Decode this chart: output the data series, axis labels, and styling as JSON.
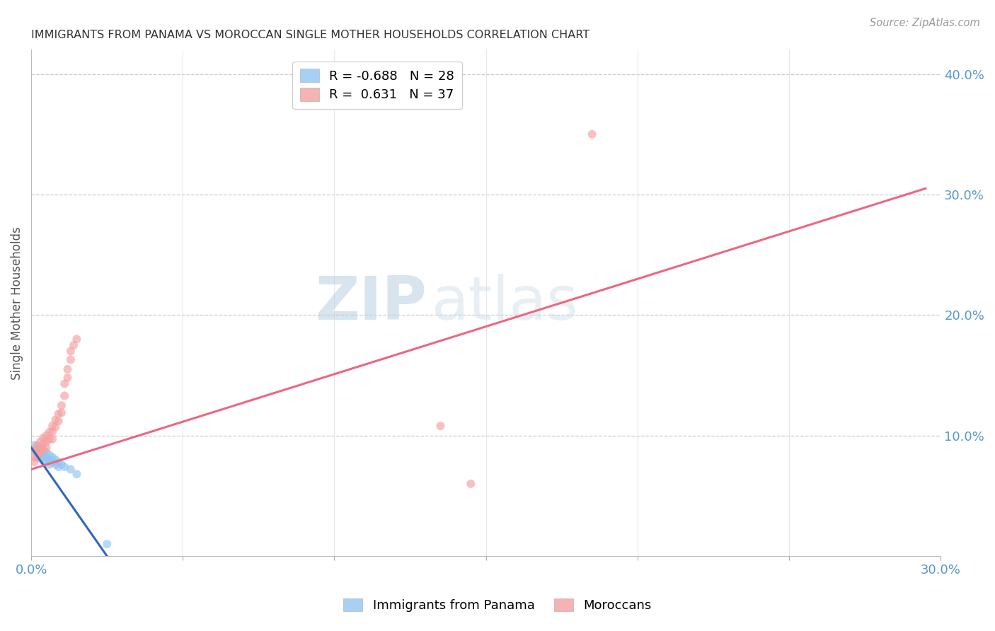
{
  "title": "IMMIGRANTS FROM PANAMA VS MOROCCAN SINGLE MOTHER HOUSEHOLDS CORRELATION CHART",
  "source": "Source: ZipAtlas.com",
  "ylabel": "Single Mother Households",
  "xlim": [
    0.0,
    0.3
  ],
  "ylim": [
    0.0,
    0.42
  ],
  "xticks": [
    0.0,
    0.05,
    0.1,
    0.15,
    0.2,
    0.25,
    0.3
  ],
  "xtick_labels": [
    "0.0%",
    "",
    "",
    "",
    "",
    "",
    "30.0%"
  ],
  "yticks_right": [
    0.1,
    0.2,
    0.3,
    0.4
  ],
  "ytick_labels_right": [
    "10.0%",
    "20.0%",
    "30.0%",
    "40.0%"
  ],
  "grid_color": "#cccccc",
  "background_color": "#ffffff",
  "legend": {
    "blue_label": "R = -0.688   N = 28",
    "pink_label": "R =  0.631   N = 37"
  },
  "blue_scatter": {
    "x": [
      0.001,
      0.001,
      0.002,
      0.002,
      0.002,
      0.003,
      0.003,
      0.003,
      0.004,
      0.004,
      0.004,
      0.005,
      0.005,
      0.005,
      0.006,
      0.006,
      0.006,
      0.007,
      0.007,
      0.008,
      0.008,
      0.009,
      0.009,
      0.01,
      0.011,
      0.013,
      0.015,
      0.025
    ],
    "y": [
      0.092,
      0.088,
      0.09,
      0.086,
      0.082,
      0.089,
      0.085,
      0.081,
      0.088,
      0.083,
      0.079,
      0.086,
      0.082,
      0.078,
      0.084,
      0.08,
      0.076,
      0.082,
      0.078,
      0.08,
      0.076,
      0.078,
      0.074,
      0.076,
      0.074,
      0.072,
      0.068,
      0.01
    ]
  },
  "pink_scatter": {
    "x": [
      0.001,
      0.001,
      0.001,
      0.002,
      0.002,
      0.002,
      0.003,
      0.003,
      0.003,
      0.004,
      0.004,
      0.004,
      0.005,
      0.005,
      0.005,
      0.006,
      0.006,
      0.007,
      0.007,
      0.007,
      0.008,
      0.008,
      0.009,
      0.009,
      0.01,
      0.01,
      0.011,
      0.011,
      0.012,
      0.012,
      0.013,
      0.013,
      0.014,
      0.015,
      0.135,
      0.145,
      0.185
    ],
    "y": [
      0.088,
      0.082,
      0.078,
      0.092,
      0.086,
      0.082,
      0.095,
      0.09,
      0.086,
      0.098,
      0.093,
      0.088,
      0.1,
      0.095,
      0.09,
      0.103,
      0.097,
      0.108,
      0.103,
      0.097,
      0.113,
      0.107,
      0.118,
      0.112,
      0.125,
      0.119,
      0.133,
      0.143,
      0.148,
      0.155,
      0.163,
      0.17,
      0.175,
      0.18,
      0.108,
      0.06,
      0.35
    ]
  },
  "blue_line": {
    "x_start": 0.0,
    "y_start": 0.09,
    "x_end": 0.025,
    "y_end": 0.0
  },
  "pink_line": {
    "x_start": 0.0,
    "y_start": 0.072,
    "x_end": 0.295,
    "y_end": 0.305
  },
  "dot_size": 75,
  "blue_color": "#92C5F0",
  "pink_color": "#F4A0A0",
  "blue_line_color": "#3366BB",
  "pink_line_color": "#EE6680",
  "tick_color": "#5599CC",
  "title_color": "#333333",
  "source_color": "#999999",
  "ylabel_color": "#555555"
}
